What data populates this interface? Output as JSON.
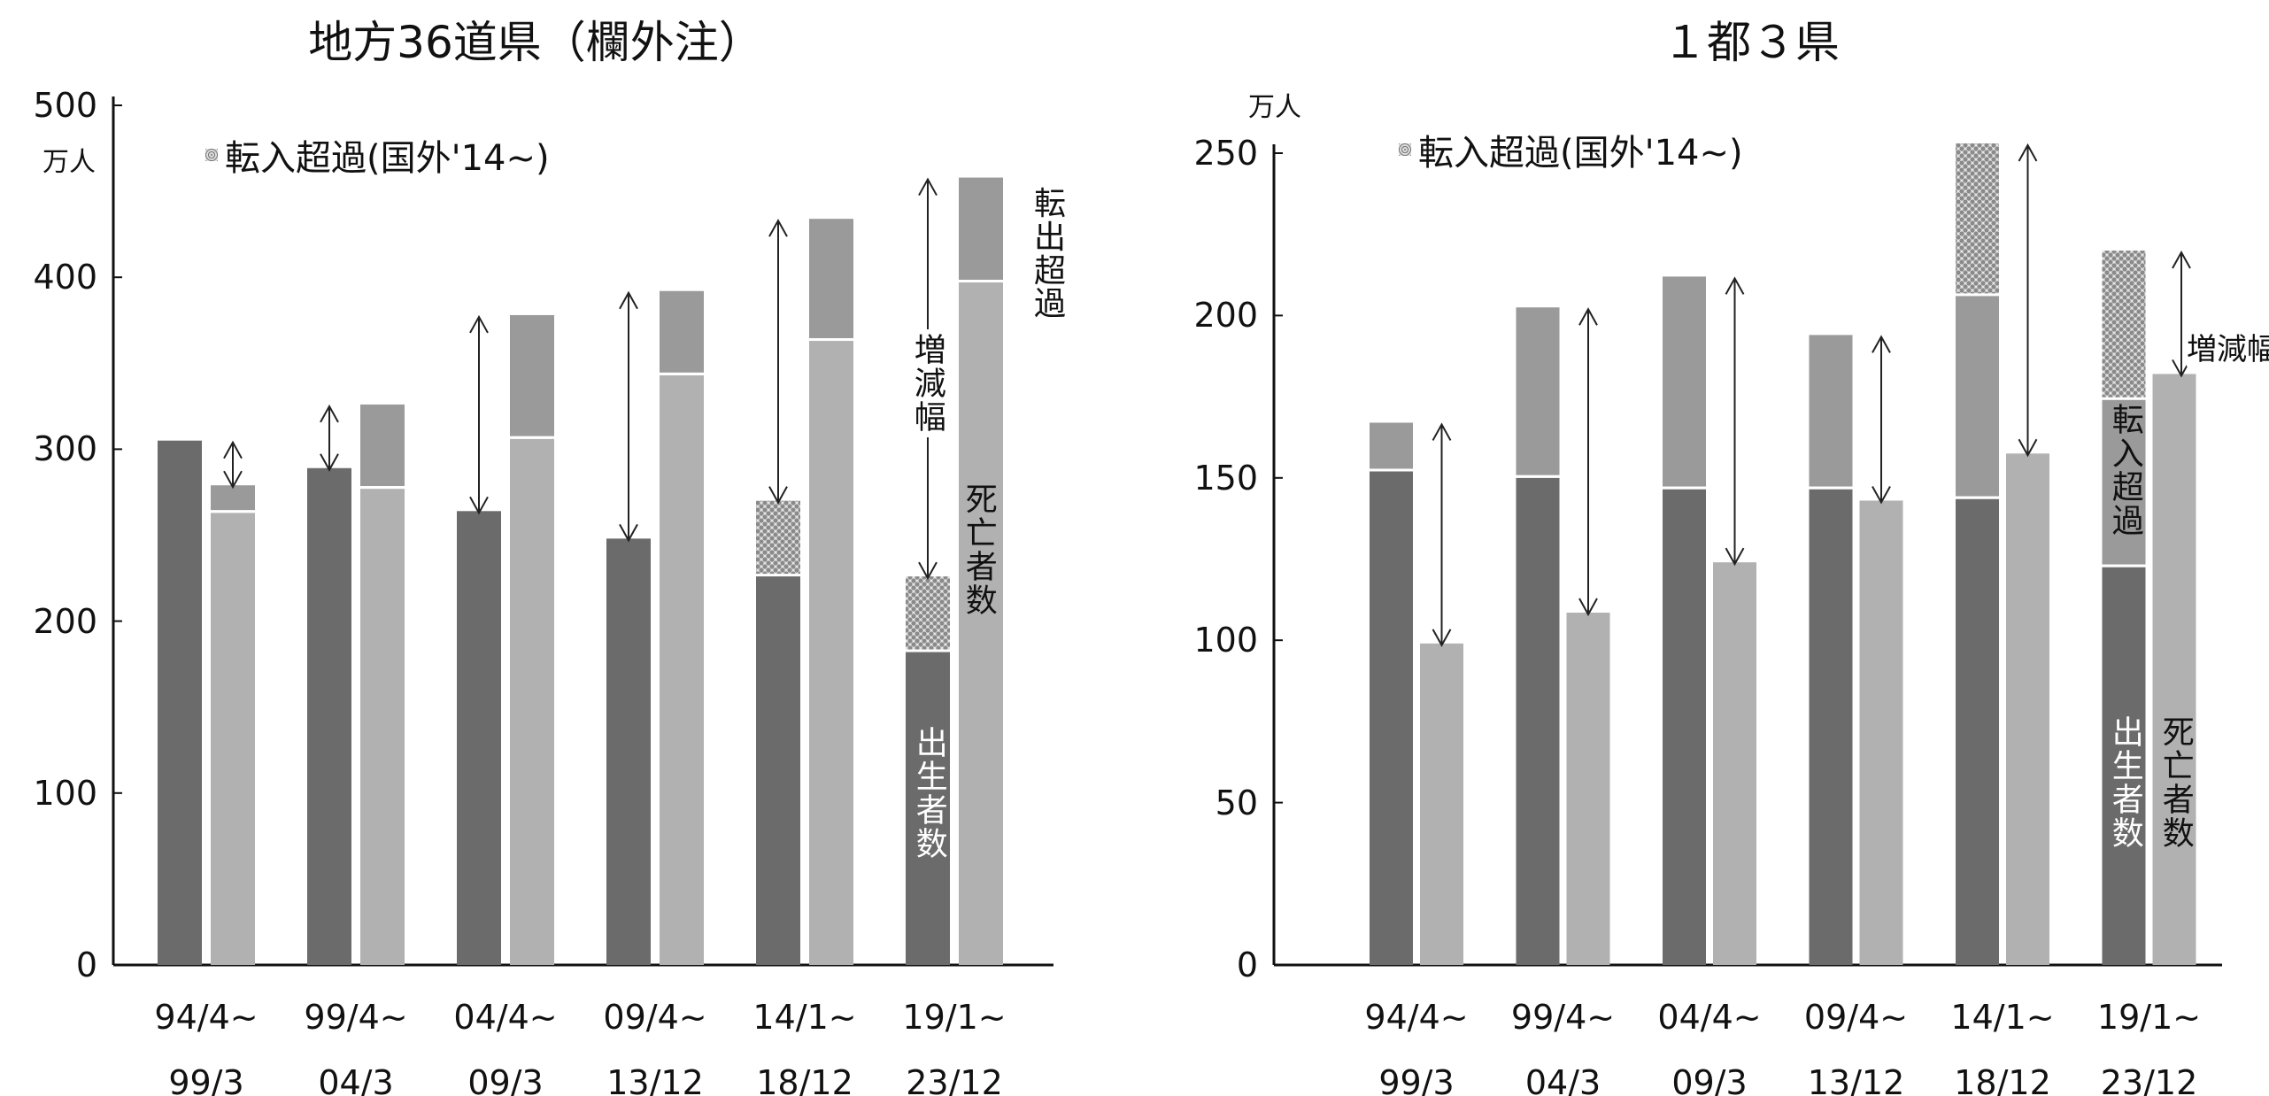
{
  "chart_data": [
    {
      "type": "bar",
      "title": "地方36道県（欄外注）",
      "unit": "万人",
      "ylim": [
        0,
        500
      ],
      "yticks": [
        0,
        100,
        200,
        300,
        400,
        500
      ],
      "categories": [
        [
          "94/4~",
          "99/3"
        ],
        [
          "99/4~",
          "04/3"
        ],
        [
          "04/4~",
          "09/3"
        ],
        [
          "09/4~",
          "13/12"
        ],
        [
          "14/1~",
          "18/12"
        ],
        [
          "19/1~",
          "23/12"
        ]
      ],
      "legend": "転入超過(国外'14~)",
      "series": {
        "births": [
          305,
          289,
          264,
          248,
          226,
          182
        ],
        "intl_net_in": [
          0,
          0,
          0,
          0,
          44,
          44
        ],
        "deaths": [
          263,
          277,
          306,
          343,
          363,
          397
        ],
        "net_out": [
          16,
          49,
          72,
          49,
          71,
          61
        ]
      },
      "annotations": {
        "net_out": "転出超過",
        "change": "増減幅",
        "deaths": "死亡者数",
        "births": "出生者数"
      }
    },
    {
      "type": "bar",
      "title": "１都３県",
      "unit": "万人",
      "ylim": [
        0,
        250
      ],
      "yticks": [
        0,
        50,
        100,
        150,
        200,
        250
      ],
      "categories": [
        [
          "94/4~",
          "99/3"
        ],
        [
          "99/4~",
          "04/3"
        ],
        [
          "04/4~",
          "09/3"
        ],
        [
          "09/4~",
          "13/12"
        ],
        [
          "14/1~",
          "18/12"
        ],
        [
          "19/1~",
          "23/12"
        ]
      ],
      "legend": "転入超過(国外'14~)",
      "series": {
        "births": [
          152,
          150,
          146.5,
          146.5,
          143.5,
          122.5
        ],
        "net_in": [
          15,
          52.5,
          65.5,
          47.5,
          62.5,
          51.5
        ],
        "intl_net_in": [
          0,
          0,
          0,
          0,
          47,
          46
        ],
        "deaths": [
          99,
          108.5,
          124,
          143,
          157.5,
          182
        ]
      },
      "annotations": {
        "net_in": "転入超過",
        "change": "増減幅",
        "deaths": "死亡者数",
        "births": "出生者数"
      }
    }
  ],
  "colors": {
    "births": "#6b6b6b",
    "migration": "#9a9a9a",
    "deaths": "#b1b1b1",
    "intl": "#c8c8c8"
  }
}
